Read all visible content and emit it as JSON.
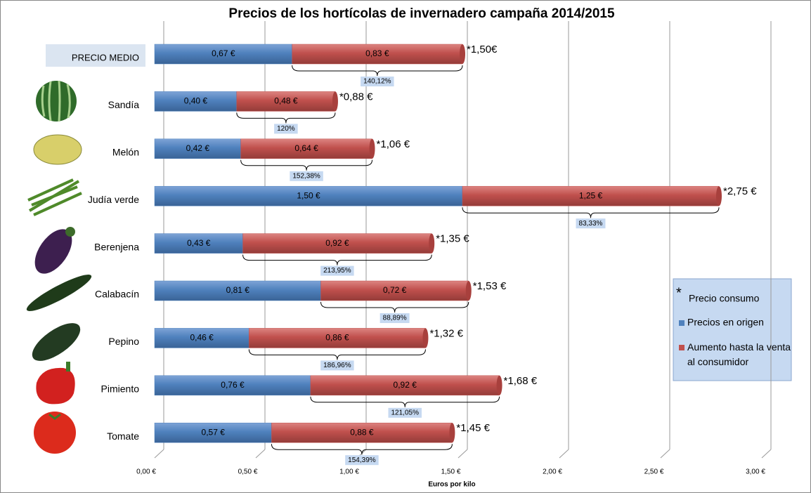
{
  "chart_data": {
    "type": "bar",
    "orientation": "horizontal",
    "stacked": true,
    "title": "Precios de los hortícolas de invernadero campaña 2014/2015",
    "xlabel": "Euros por kilo",
    "categories": [
      "PRECIO MEDIO",
      "Sandía",
      "Melón",
      "Judía verde",
      "Berenjena",
      "Calabacín",
      "Pepino",
      "Pimiento",
      "Tomate"
    ],
    "series": [
      {
        "name": "Precios en origen",
        "color": "#4f81bd",
        "values": [
          0.67,
          0.4,
          0.42,
          1.5,
          0.43,
          0.81,
          0.46,
          0.76,
          0.57
        ],
        "value_labels": [
          "0,67 €",
          "0,40 €",
          "0,42 €",
          "1,50 €",
          "0,43 €",
          "0,81 €",
          "0,46 €",
          "0,76 €",
          "0,57 €"
        ]
      },
      {
        "name": "Aumento hasta la venta al consumidor",
        "color": "#c0504d",
        "values": [
          0.83,
          0.48,
          0.64,
          1.25,
          0.92,
          0.72,
          0.86,
          0.92,
          0.88
        ],
        "value_labels": [
          "0,83 €",
          "0,48 €",
          "0,64 €",
          "1,25 €",
          "0,92 €",
          "0,72 €",
          "0,86 €",
          "0,92 €",
          "0,88 €"
        ]
      }
    ],
    "price_labels": [
      "*1,50€",
      "*0,88 €",
      "*1,06 €",
      "*2,75 €",
      "*1,35 €",
      "*1,53 €",
      "*1,32 €",
      "*1,68 €",
      "*1,45 €"
    ],
    "increase_labels": [
      "140,12%",
      "120%",
      "152,38%",
      "83,33%",
      "213,95%",
      "88,89%",
      "186,96%",
      "121,05%",
      "154,39%"
    ],
    "legend_marker": "*",
    "legend_note": "Precio consumo",
    "xlim": [
      0,
      3
    ],
    "xticks": [
      {
        "value": 0,
        "label": "0,00 €"
      },
      {
        "value": 0.5,
        "label": "0,50 €"
      },
      {
        "value": 1,
        "label": "1,00 €"
      },
      {
        "value": 1.5,
        "label": "1,50 €"
      },
      {
        "value": 2,
        "label": "2,00 €"
      },
      {
        "value": 2.5,
        "label": "2,50 €"
      },
      {
        "value": 3,
        "label": "3,00 €"
      }
    ],
    "grid": true
  }
}
